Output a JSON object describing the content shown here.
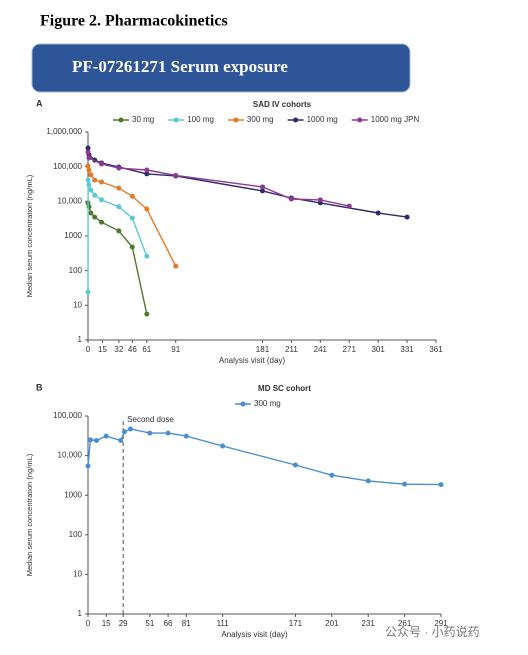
{
  "figure_title": "Figure 2. Pharmacokinetics",
  "banner": "PF-07261271 Serum exposure",
  "watermark": "公众号 · 小药说药",
  "chart_data": [
    {
      "type": "line",
      "panel": "A",
      "title": "SAD IV cohorts",
      "xlabel": "Analysis visit (day)",
      "ylabel": "Median serum concentration (ng/mL)",
      "log_y": true,
      "grid": false,
      "xlim": [
        0,
        361
      ],
      "xticks": [
        0,
        15,
        32,
        46,
        61,
        91,
        181,
        211,
        241,
        271,
        301,
        331,
        361
      ],
      "ylim": [
        1,
        1000000
      ],
      "yticks": [
        1,
        10,
        100,
        1000,
        {
          "value": 10000,
          "label": "10,000"
        },
        {
          "value": 100000,
          "label": "100,000"
        },
        {
          "value": 1000000,
          "label": "1,000,000"
        }
      ],
      "series": [
        {
          "name": "30 mg",
          "color": "#4e7a2e",
          "x": [
            0,
            1,
            3,
            7,
            14,
            32,
            46,
            61,
            91
          ],
          "values": [
            9000,
            7000,
            4600,
            3500,
            2500,
            1400,
            480,
            5.6,
            null
          ]
        },
        {
          "name": "100 mg",
          "color": "#5cc8d2",
          "x": [
            0,
            0.1,
            1,
            3,
            7,
            14,
            32,
            46,
            61,
            91
          ],
          "values": [
            24,
            41000,
            30000,
            21000,
            15000,
            11000,
            7000,
            3300,
            260,
            null
          ]
        },
        {
          "name": "300 mg",
          "color": "#e07b2a",
          "x": [
            0,
            1,
            3,
            7,
            14,
            32,
            46,
            61,
            91,
            181
          ],
          "values": [
            105000,
            80000,
            58000,
            41000,
            36000,
            24000,
            14000,
            6000,
            135,
            null
          ]
        },
        {
          "name": "1000 mg",
          "color": "#2e2a6e",
          "x": [
            0,
            1,
            7,
            14,
            32,
            61,
            91,
            181,
            211,
            241,
            301,
            331
          ],
          "values": [
            345000,
            218000,
            155000,
            128000,
            98000,
            62000,
            54000,
            20000,
            12500,
            9000,
            4600,
            3500
          ]
        },
        {
          "name": "1000 mg  JPN",
          "color": "#8b3a8f",
          "x": [
            0,
            1,
            14,
            32,
            61,
            91,
            181,
            211,
            241,
            271
          ],
          "values": [
            265000,
            178000,
            120000,
            91000,
            80000,
            56000,
            26000,
            11700,
            11000,
            7300
          ]
        }
      ]
    },
    {
      "type": "line",
      "panel": "B",
      "title": "MD SC cohort",
      "xlabel": "Analysis visit (day)",
      "ylabel": "Median serum concentration (ng/mL)",
      "log_y": true,
      "grid": false,
      "xlim": [
        0,
        291
      ],
      "xticks": [
        0,
        15,
        29,
        51,
        66,
        81,
        111,
        171,
        201,
        231,
        261,
        291
      ],
      "ylim": [
        1,
        100000
      ],
      "yticks": [
        1,
        10,
        100,
        1000,
        {
          "value": 10000,
          "label": "10,000"
        },
        {
          "value": 100000,
          "label": "100,000"
        }
      ],
      "annotation": {
        "text": "Second dose",
        "x": 29
      },
      "series": [
        {
          "name": "300 mg",
          "color": "#4a8fcb",
          "x": [
            0,
            2,
            7,
            15,
            27,
            30,
            35,
            51,
            66,
            81,
            111,
            171,
            201,
            231,
            261,
            291
          ],
          "values": [
            5500,
            25000,
            24000,
            31000,
            24000,
            40000,
            47000,
            37000,
            37000,
            31000,
            17500,
            5800,
            3200,
            2300,
            1900,
            1850
          ]
        }
      ]
    }
  ]
}
